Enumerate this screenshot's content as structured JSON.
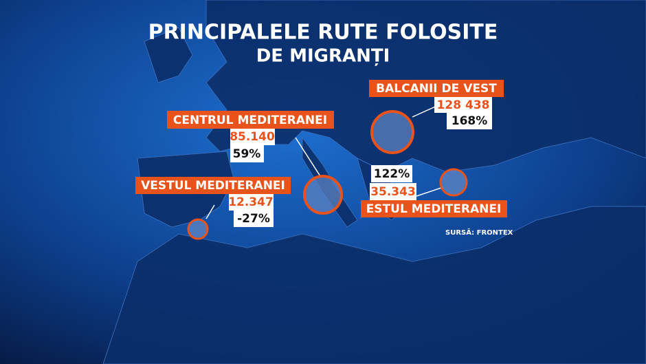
{
  "title": {
    "line1": "PRINCIPALELE RUTE FOLOSITE",
    "line2": "DE MIGRANȚI"
  },
  "routes": [
    {
      "name": "BALCANII DE VEST",
      "value": "128 438",
      "change": "168%"
    },
    {
      "name": "CENTRUL MEDITERANEI",
      "value": "85.140",
      "change": "59%"
    },
    {
      "name": "VESTUL MEDITERANEI",
      "value": "12.347",
      "change": "-27%"
    },
    {
      "name": "ESTUL MEDITERANEI",
      "value": "35.343",
      "change": "122%"
    }
  ],
  "source": "SURSĂ: FRONTEX"
}
